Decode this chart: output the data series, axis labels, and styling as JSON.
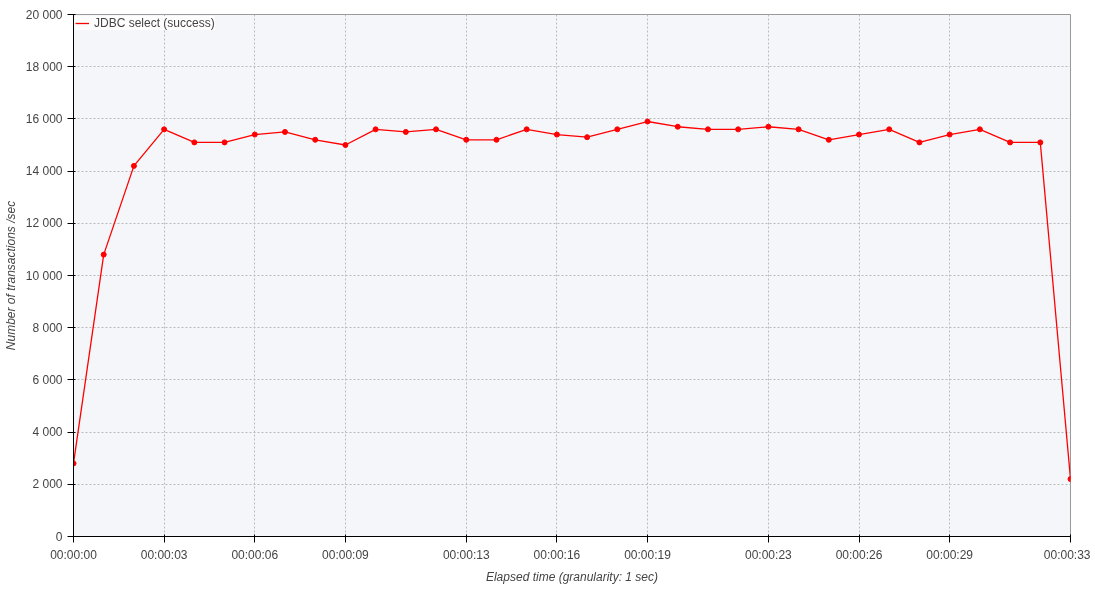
{
  "chart_data": {
    "type": "line",
    "xlabel": "Elapsed time (granularity: 1 sec)",
    "ylabel": "Number of transactions /sec",
    "x": [
      0,
      1,
      2,
      3,
      4,
      5,
      6,
      7,
      8,
      9,
      10,
      11,
      12,
      13,
      14,
      15,
      16,
      17,
      18,
      19,
      20,
      21,
      22,
      23,
      24,
      25,
      26,
      27,
      28,
      29,
      30,
      31,
      32,
      33
    ],
    "series": [
      {
        "name": "JDBC select (success)",
        "color": "#ff0000",
        "values": [
          2800,
          10800,
          14200,
          15600,
          15100,
          15100,
          15400,
          15500,
          15200,
          15000,
          15600,
          15500,
          15600,
          15200,
          15200,
          15600,
          15400,
          15300,
          15600,
          15900,
          15700,
          15600,
          15600,
          15700,
          15600,
          15200,
          15400,
          15600,
          15100,
          15400,
          15600,
          15100,
          15100,
          2200
        ]
      }
    ],
    "xlim": [
      0,
      33
    ],
    "xticks": [
      {
        "value": 0,
        "label": "00:00:00"
      },
      {
        "value": 3,
        "label": "00:00:03"
      },
      {
        "value": 6,
        "label": "00:00:06"
      },
      {
        "value": 9,
        "label": "00:00:09"
      },
      {
        "value": 13,
        "label": "00:00:13"
      },
      {
        "value": 16,
        "label": "00:00:16"
      },
      {
        "value": 19,
        "label": "00:00:19"
      },
      {
        "value": 23,
        "label": "00:00:23"
      },
      {
        "value": 26,
        "label": "00:00:26"
      },
      {
        "value": 29,
        "label": "00:00:29"
      },
      {
        "value": 33,
        "label": "00:00:33"
      }
    ],
    "ylim": [
      0,
      20000
    ],
    "yticks": [
      0,
      {
        "value": 2000,
        "label": "2 000"
      },
      {
        "value": 4000,
        "label": "4 000"
      },
      {
        "value": 6000,
        "label": "6 000"
      },
      {
        "value": 8000,
        "label": "8 000"
      },
      {
        "value": 10000,
        "label": "10 000"
      },
      {
        "value": 12000,
        "label": "12 000"
      },
      {
        "value": 14000,
        "label": "14 000"
      },
      {
        "value": 16000,
        "label": "16 000"
      },
      {
        "value": 18000,
        "label": "18 000"
      },
      {
        "value": 20000,
        "label": "20 000"
      }
    ],
    "grid": true,
    "legend": "top left",
    "marker": "circle",
    "line_style": "solid"
  }
}
